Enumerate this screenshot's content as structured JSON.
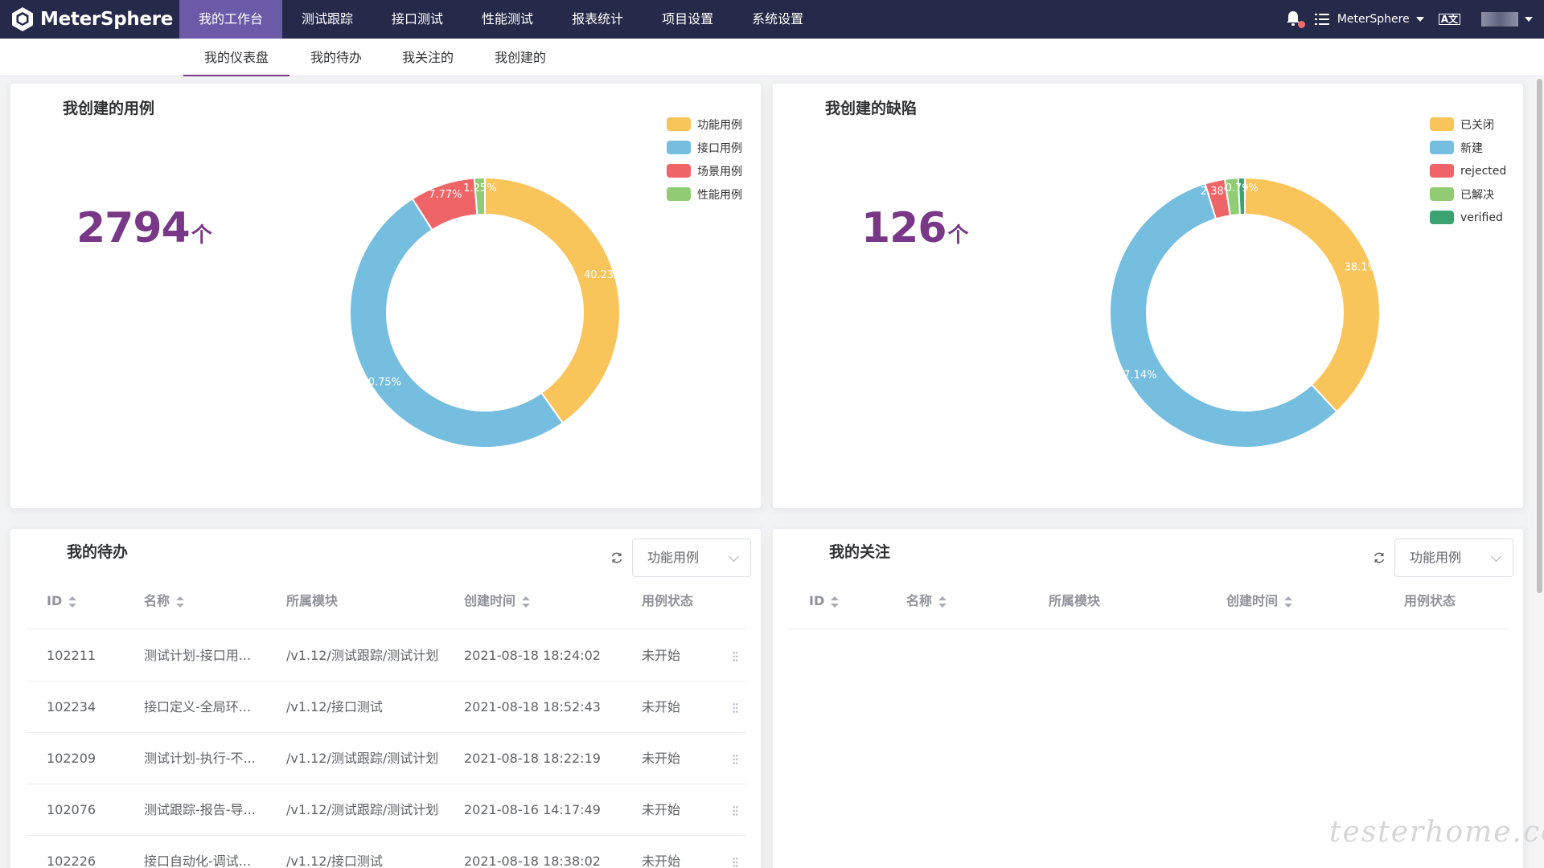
{
  "app": {
    "logo_text": "MeterSphere",
    "workspace": "MeterSphere",
    "lang": "A文"
  },
  "nav": [
    {
      "label": "我的工作台",
      "active": true
    },
    {
      "label": "测试跟踪"
    },
    {
      "label": "接口测试"
    },
    {
      "label": "性能测试"
    },
    {
      "label": "报表统计"
    },
    {
      "label": "项目设置"
    },
    {
      "label": "系统设置"
    }
  ],
  "subtabs": [
    {
      "label": "我的仪表盘",
      "active": true
    },
    {
      "label": "我的待办"
    },
    {
      "label": "我关注的"
    },
    {
      "label": "我创建的"
    }
  ],
  "cases_card": {
    "title": "我创建的用例",
    "count": "2794",
    "unit": "个",
    "legend": [
      {
        "label": "功能用例",
        "color": "#f9c55b"
      },
      {
        "label": "接口用例",
        "color": "#75bedf"
      },
      {
        "label": "场景用例",
        "color": "#ef6567"
      },
      {
        "label": "性能用例",
        "color": "#91cc75"
      }
    ],
    "slices": [
      {
        "label": "功能用例",
        "value": 40.23,
        "text": "40.23%",
        "color": "#f9c55b"
      },
      {
        "label": "接口用例",
        "value": 50.75,
        "text": "50.75%",
        "color": "#75bedf"
      },
      {
        "label": "场景用例",
        "value": 7.77,
        "text": "7.77%",
        "color": "#ef6567"
      },
      {
        "label": "性能用例",
        "value": 1.25,
        "text": "1.25%",
        "color": "#91cc75"
      }
    ]
  },
  "bugs_card": {
    "title": "我创建的缺陷",
    "count": "126",
    "unit": "个",
    "legend": [
      {
        "label": "已关闭",
        "color": "#f9c55b"
      },
      {
        "label": "新建",
        "color": "#75bedf"
      },
      {
        "label": "rejected",
        "color": "#ef6567"
      },
      {
        "label": "已解决",
        "color": "#91cc75"
      },
      {
        "label": "verified",
        "color": "#3ba272"
      }
    ],
    "slices": [
      {
        "label": "已关闭",
        "value": 38.1,
        "text": "38.1%",
        "color": "#f9c55b"
      },
      {
        "label": "新建",
        "value": 57.14,
        "text": "57.14%",
        "color": "#75bedf"
      },
      {
        "label": "rejected",
        "value": 2.38,
        "text": "2.38%",
        "color": "#ef6567"
      },
      {
        "label": "已解决",
        "value": 1.59,
        "text": "",
        "color": "#91cc75"
      },
      {
        "label": "verified",
        "value": 0.79,
        "text": "0.79%",
        "color": "#3ba272"
      }
    ]
  },
  "todo_card": {
    "title": "我的待办",
    "select_value": "功能用例",
    "columns": [
      "ID",
      "名称",
      "所属模块",
      "创建时间",
      "用例状态"
    ],
    "rows": [
      {
        "id": "102211",
        "name": "测试计划-接口用...",
        "module": "/v1.12/测试跟踪/测试计划",
        "time": "2021-08-18 18:24:02",
        "status": "未开始"
      },
      {
        "id": "102234",
        "name": "接口定义-全局环...",
        "module": "/v1.12/接口测试",
        "time": "2021-08-18 18:52:43",
        "status": "未开始"
      },
      {
        "id": "102209",
        "name": "测试计划-执行-不...",
        "module": "/v1.12/测试跟踪/测试计划",
        "time": "2021-08-18 18:22:19",
        "status": "未开始"
      },
      {
        "id": "102076",
        "name": "测试跟踪-报告-导...",
        "module": "/v1.12/测试跟踪/测试计划",
        "time": "2021-08-16 14:17:49",
        "status": "未开始"
      },
      {
        "id": "102226",
        "name": "接口自动化-调试...",
        "module": "/v1.12/接口测试",
        "time": "2021-08-18 18:38:02",
        "status": "未开始"
      }
    ]
  },
  "follow_card": {
    "title": "我的关注",
    "select_value": "功能用例",
    "columns": [
      "ID",
      "名称",
      "所属模块",
      "创建时间",
      "用例状态"
    ]
  },
  "watermark": "testerhome.com"
}
